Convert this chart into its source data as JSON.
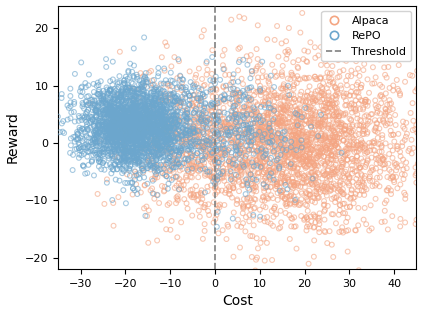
{
  "title": "",
  "xlabel": "Cost",
  "ylabel": "Reward",
  "xlim": [
    -35,
    45
  ],
  "ylim": [
    -22,
    24
  ],
  "threshold_x": 0,
  "alpaca_color": "#F4A582",
  "repo_color": "#6CA6CD",
  "alpaca_label": "Alpaca",
  "repo_label": "RePO",
  "threshold_label": "Threshold",
  "marker_size": 12,
  "alpha": 0.6,
  "xticks": [
    -30,
    -20,
    -10,
    0,
    10,
    20,
    30,
    40
  ],
  "yticks": [
    -20,
    -10,
    0,
    10,
    20
  ],
  "alpaca_main_n": 2500,
  "alpaca_main_cost_mean": 18,
  "alpaca_main_cost_std": 13,
  "alpaca_main_reward_mean": 0,
  "alpaca_main_reward_std": 7,
  "alpaca_extra_n": 500,
  "alpaca_extra_cost_mean": -7,
  "alpaca_extra_cost_std": 7,
  "alpaca_extra_reward_mean": 0,
  "alpaca_extra_reward_std": 6,
  "repo_main_n": 2500,
  "repo_main_cost_mean": -18,
  "repo_main_cost_std": 6,
  "repo_main_reward_mean": 3,
  "repo_main_reward_std": 4,
  "repo_extra_n": 400,
  "repo_extra_cost_mean": 3,
  "repo_extra_cost_std": 8,
  "repo_extra_reward_mean": 2,
  "repo_extra_reward_std": 5
}
